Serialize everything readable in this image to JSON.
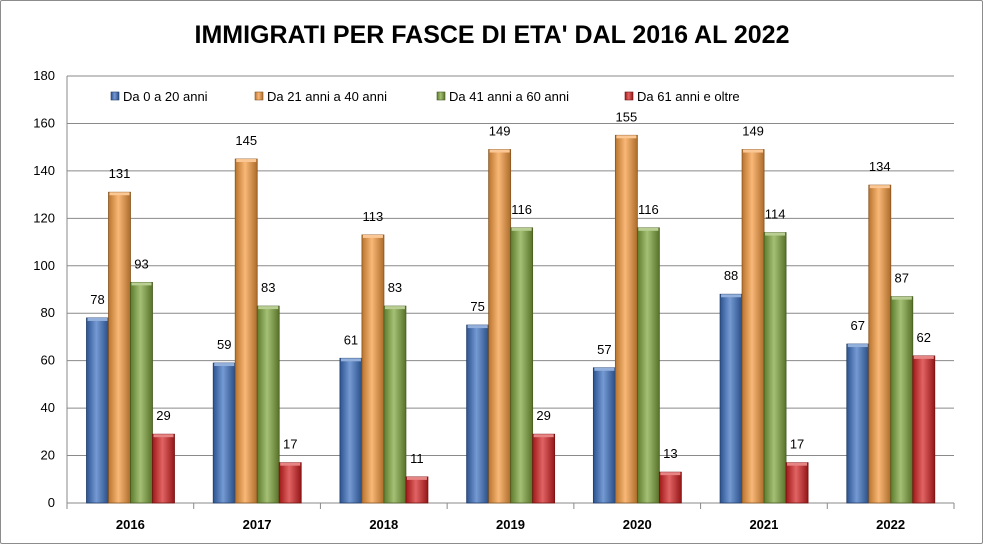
{
  "chart_data": {
    "type": "bar",
    "title": "IMMIGRATI PER FASCE DI ETA' DAL 2016 AL 2022",
    "xlabel": "",
    "ylabel": "",
    "ylim": [
      0,
      180
    ],
    "yticks": [
      0,
      20,
      40,
      60,
      80,
      100,
      120,
      140,
      160,
      180
    ],
    "grid": true,
    "legend_position": "top",
    "categories": [
      "2016",
      "2017",
      "2018",
      "2019",
      "2020",
      "2021",
      "2022"
    ],
    "series": [
      {
        "name": "Da 0 a 20 anni",
        "color": "#3a6fc0",
        "values": [
          78,
          59,
          61,
          75,
          57,
          88,
          67
        ]
      },
      {
        "name": "Da 21 anni a 40 anni",
        "color": "#f79a3c",
        "values": [
          131,
          145,
          113,
          149,
          155,
          149,
          134
        ]
      },
      {
        "name": "Da 41 anni a 60 anni",
        "color": "#7da53a",
        "values": [
          93,
          83,
          83,
          116,
          116,
          114,
          87
        ]
      },
      {
        "name": "Da 61 anni e oltre",
        "color": "#d42020",
        "values": [
          29,
          17,
          11,
          29,
          13,
          17,
          62
        ]
      }
    ]
  }
}
